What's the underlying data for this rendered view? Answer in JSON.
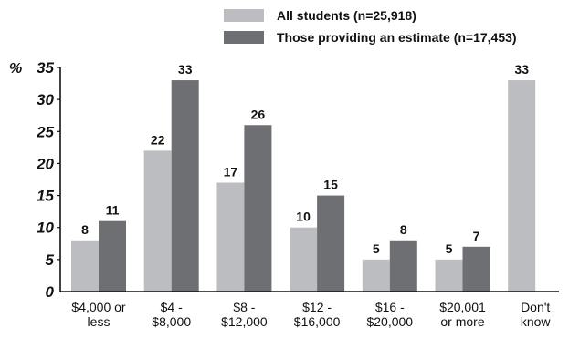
{
  "chart_data": {
    "type": "bar",
    "ylabel": "%",
    "ylim": [
      0,
      35
    ],
    "yticks": [
      "0",
      "5",
      "10",
      "15",
      "20",
      "25",
      "30",
      "35"
    ],
    "categories": [
      [
        "$4,000 or",
        "less"
      ],
      [
        "$4 -",
        "$8,000"
      ],
      [
        "$8 -",
        "$12,000"
      ],
      [
        "$12 -",
        "$16,000"
      ],
      [
        "$16 -",
        "$20,000"
      ],
      [
        "$20,001",
        "or more"
      ],
      [
        "Don't",
        "know"
      ]
    ],
    "series": [
      {
        "name": "All students (n=25,918)",
        "color": "#bcbdc0",
        "values": [
          8,
          22,
          17,
          10,
          5,
          5,
          33
        ]
      },
      {
        "name": "Those providing an estimate (n=17,453)",
        "color": "#6e6f72",
        "values": [
          11,
          33,
          26,
          15,
          8,
          7,
          null
        ]
      }
    ],
    "legend": "top-right",
    "grid": false
  }
}
